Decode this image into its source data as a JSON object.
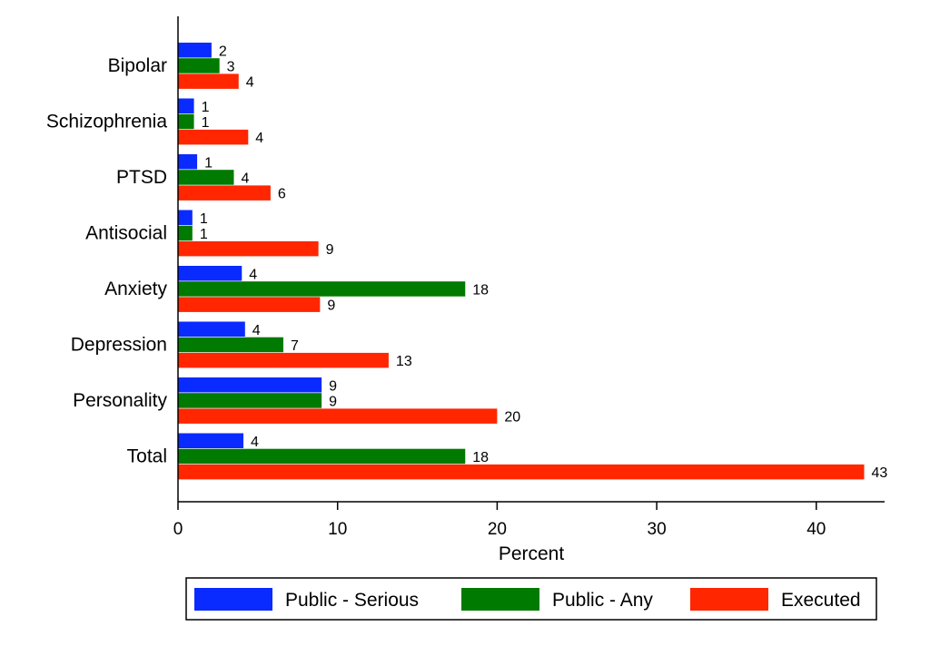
{
  "chart_data": {
    "type": "bar",
    "orientation": "horizontal",
    "categories": [
      "Bipolar",
      "Schizophrenia",
      "PTSD",
      "Antisocial",
      "Anxiety",
      "Depression",
      "Personality",
      "Total"
    ],
    "series": [
      {
        "name": "Public - Serious",
        "color": "#0a2bff",
        "values": [
          2.1,
          1.0,
          1.2,
          0.9,
          4.0,
          4.2,
          9.0,
          4.1
        ],
        "labels": [
          "2",
          "1",
          "1",
          "1",
          "4",
          "4",
          "9",
          "4"
        ]
      },
      {
        "name": "Public - Any",
        "color": "#007a00",
        "values": [
          2.6,
          1.0,
          3.5,
          0.9,
          18.0,
          6.6,
          9.0,
          18.0
        ],
        "labels": [
          "3",
          "1",
          "4",
          "1",
          "18",
          "7",
          "9",
          "18"
        ]
      },
      {
        "name": "Executed",
        "color": "#ff2600",
        "values": [
          3.8,
          4.4,
          5.8,
          8.8,
          8.9,
          13.2,
          20.0,
          43.0
        ],
        "labels": [
          "4",
          "4",
          "6",
          "9",
          "9",
          "13",
          "20",
          "43"
        ]
      }
    ],
    "xlabel": "Percent",
    "ylabel": "",
    "xlim": [
      0,
      44.2
    ],
    "xticks": [
      0,
      10,
      20,
      30,
      40
    ],
    "xtick_labels": [
      "0",
      "10",
      "20",
      "30",
      "40"
    ],
    "grid": false,
    "legend_placement": "bottom"
  }
}
